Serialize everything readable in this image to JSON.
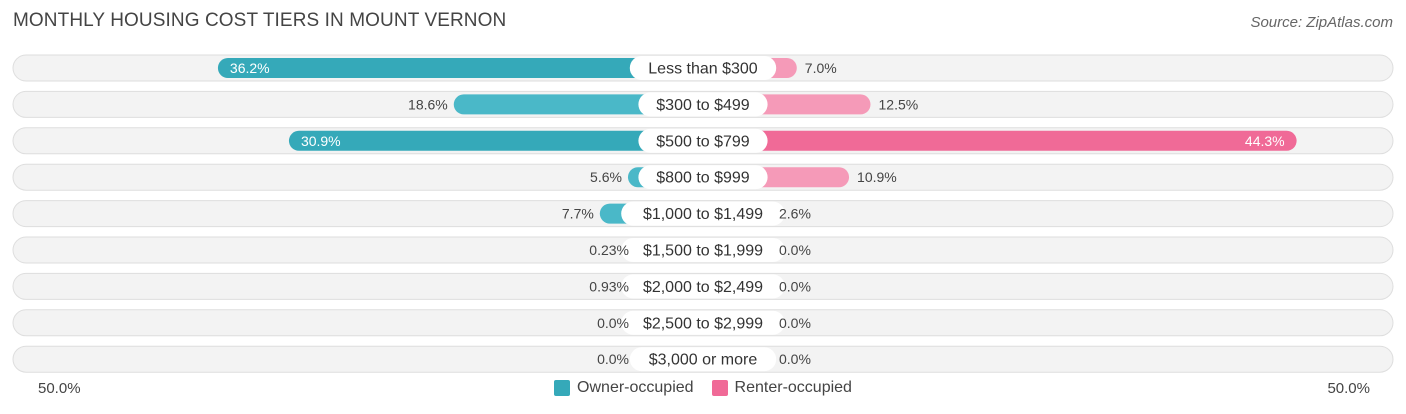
{
  "title": "MONTHLY HOUSING COST TIERS IN MOUNT VERNON",
  "source": "Source: ZipAtlas.com",
  "colors": {
    "owner": "#4ab8c8",
    "owner_strong": "#35a9b9",
    "renter": "#f59ab8",
    "renter_strong": "#f06a97",
    "row_bg": "#f1f1f1",
    "row_border": "#dedede"
  },
  "axis": {
    "left_label": "50.0%",
    "right_label": "50.0%"
  },
  "legend": {
    "owner_label": "Owner-occupied",
    "renter_label": "Renter-occupied"
  },
  "chart_data": {
    "type": "bar",
    "orientation": "horizontal-diverging",
    "title": "MONTHLY HOUSING COST TIERS IN MOUNT VERNON",
    "xlim": [
      -50,
      50
    ],
    "categories": [
      "Less than $300",
      "$300 to $499",
      "$500 to $799",
      "$800 to $999",
      "$1,000 to $1,499",
      "$1,500 to $1,999",
      "$2,000 to $2,499",
      "$2,500 to $2,999",
      "$3,000 or more"
    ],
    "series": [
      {
        "name": "Owner-occupied",
        "values": [
          36.2,
          18.6,
          30.9,
          5.6,
          7.7,
          0.23,
          0.93,
          0.0,
          0.0
        ],
        "labels": [
          "36.2%",
          "18.6%",
          "30.9%",
          "5.6%",
          "7.7%",
          "0.23%",
          "0.93%",
          "0.0%",
          "0.0%"
        ]
      },
      {
        "name": "Renter-occupied",
        "values": [
          7.0,
          12.5,
          44.3,
          10.9,
          2.6,
          0.0,
          0.0,
          0.0,
          0.0
        ],
        "labels": [
          "7.0%",
          "12.5%",
          "44.3%",
          "10.9%",
          "2.6%",
          "0.0%",
          "0.0%",
          "0.0%",
          "0.0%"
        ]
      }
    ],
    "legend_position": "bottom-center"
  }
}
